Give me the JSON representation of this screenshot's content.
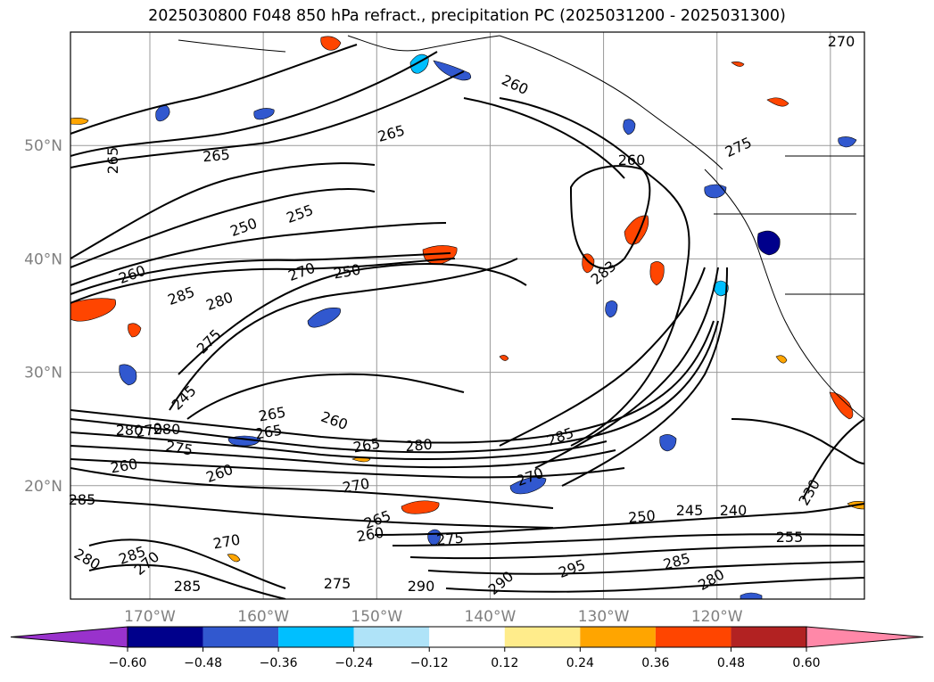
{
  "title": "2025030800 F048 850 hPa refract., precipitation PC (2025031200 - 2025031300)",
  "map": {
    "lat_labels": [
      "50°N",
      "40°N",
      "30°N",
      "20°N"
    ],
    "lon_labels": [
      "170°W",
      "160°W",
      "150°W",
      "140°W",
      "130°W",
      "120°W"
    ],
    "grid": true,
    "colors": {
      "land_outline": "#000000",
      "grid": "#999999"
    }
  },
  "contour_labels": [
    "270",
    "260",
    "265",
    "265",
    "265",
    "260",
    "255",
    "250",
    "260",
    "270",
    "250",
    "275",
    "285",
    "280",
    "275",
    "245",
    "265",
    "260",
    "265",
    "270",
    "280",
    "280",
    "275",
    "265",
    "280",
    "285",
    "260",
    "260",
    "270",
    "270",
    "265",
    "260",
    "275",
    "250",
    "245",
    "240",
    "255",
    "230",
    "283",
    "285",
    "295",
    "280",
    "290",
    "290",
    "275",
    "285",
    "280",
    "270",
    "285",
    "270",
    "285"
  ],
  "colorbar": {
    "ticks": [
      "−0.60",
      "−0.48",
      "−0.36",
      "−0.24",
      "−0.12",
      "0.12",
      "0.24",
      "0.36",
      "0.48",
      "0.60"
    ],
    "colors": [
      "#9932cc",
      "#00008b",
      "#3158cf",
      "#00bfff",
      "#afe3f8",
      "#ffffff",
      "#ffec8b",
      "#ffa500",
      "#ff4500",
      "#b22222",
      "#ff88a8",
      "#ff88a8"
    ]
  },
  "chart_data": {
    "type": "heatmap",
    "title": "2025030800 F048 850 hPa refract., precipitation PC (2025031200 - 2025031300)",
    "lon_range": [
      -177,
      -107
    ],
    "lat_range": [
      10,
      60
    ],
    "contour_field": "850 hPa refractivity",
    "contour_levels": [
      230,
      240,
      245,
      250,
      255,
      260,
      265,
      270,
      275,
      280,
      285,
      290,
      295
    ],
    "shaded_field": "precipitation PC",
    "shade_bounds": [
      -0.6,
      -0.48,
      -0.36,
      -0.24,
      -0.12,
      0.12,
      0.24,
      0.36,
      0.48,
      0.6
    ],
    "colorbar_extend": "both"
  }
}
